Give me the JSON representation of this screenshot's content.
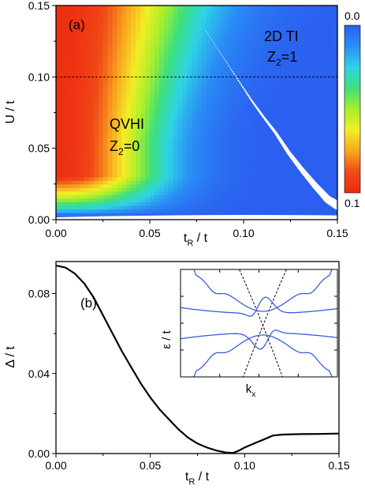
{
  "chart_data": [
    {
      "type": "heatmap",
      "panel_label": "(a)",
      "xlabel_main": "t",
      "xlabel_sub": "R",
      "xlabel_rest": " / t",
      "ylabel": "U / t",
      "xlim": [
        0,
        0.15
      ],
      "ylim": [
        0,
        0.15
      ],
      "xticks": [
        "0.00",
        "0.05",
        "0.10",
        "0.15"
      ],
      "yticks": [
        "0.00",
        "0.05",
        "0.10",
        "0.15"
      ],
      "reference_line_y": 0.1,
      "colorbar": {
        "top_label": "0.0",
        "bottom_label": "0.1",
        "range": [
          0.0,
          0.1
        ],
        "colors": [
          "#2b5ff0",
          "#2a8ef5",
          "#2fd3e6",
          "#3de07a",
          "#a7ee2c",
          "#f3ee25",
          "#f9a61f",
          "#f04a17",
          "#ee2a12"
        ]
      },
      "regions": [
        {
          "name": "QVHI",
          "z2_main": "Z",
          "z2_sub": "2",
          "z2_value": "=0"
        },
        {
          "name": "2D TI",
          "z2_main": "Z",
          "z2_sub": "2",
          "z2_value": "=1"
        }
      ],
      "gap_closing_line": [
        {
          "x": 0.08,
          "y": 0.132
        },
        {
          "x": 0.086,
          "y": 0.12
        },
        {
          "x": 0.092,
          "y": 0.108
        },
        {
          "x": 0.098,
          "y": 0.096
        },
        {
          "x": 0.104,
          "y": 0.084
        },
        {
          "x": 0.11,
          "y": 0.073
        },
        {
          "x": 0.117,
          "y": 0.061
        },
        {
          "x": 0.124,
          "y": 0.047
        },
        {
          "x": 0.131,
          "y": 0.035
        },
        {
          "x": 0.138,
          "y": 0.024
        },
        {
          "x": 0.145,
          "y": 0.014
        },
        {
          "x": 0.15,
          "y": 0.01
        }
      ]
    },
    {
      "type": "line",
      "panel_label": "(b)",
      "xlabel_main": "t",
      "xlabel_sub": "R",
      "xlabel_rest": " / t",
      "ylabel": "Δ / t",
      "xlim": [
        0,
        0.15
      ],
      "ylim": [
        0,
        0.096
      ],
      "xticks": [
        "0.00",
        "0.05",
        "0.10",
        "0.15"
      ],
      "yticks": [
        "0.00",
        "0.04",
        "0.08"
      ],
      "series": [
        {
          "x": [
            0.0,
            0.005,
            0.01,
            0.015,
            0.02,
            0.025,
            0.03,
            0.035,
            0.04,
            0.045,
            0.05,
            0.055,
            0.06,
            0.065,
            0.07,
            0.075,
            0.08,
            0.085,
            0.09,
            0.094,
            0.097,
            0.1,
            0.105,
            0.11,
            0.115,
            0.12,
            0.13,
            0.14,
            0.15
          ],
          "y": [
            0.094,
            0.093,
            0.09,
            0.085,
            0.078,
            0.069,
            0.06,
            0.051,
            0.043,
            0.035,
            0.028,
            0.022,
            0.017,
            0.012,
            0.008,
            0.005,
            0.003,
            0.0015,
            0.0005,
            0.0003,
            0.0015,
            0.003,
            0.005,
            0.007,
            0.009,
            0.0095,
            0.0097,
            0.0098,
            0.01
          ]
        }
      ],
      "inset": {
        "xlabel_main": "k",
        "xlabel_sub": "x",
        "ylabel": "ε / t",
        "bands_color": "#3a5fd9",
        "dashed_color": "#000000"
      }
    }
  ]
}
